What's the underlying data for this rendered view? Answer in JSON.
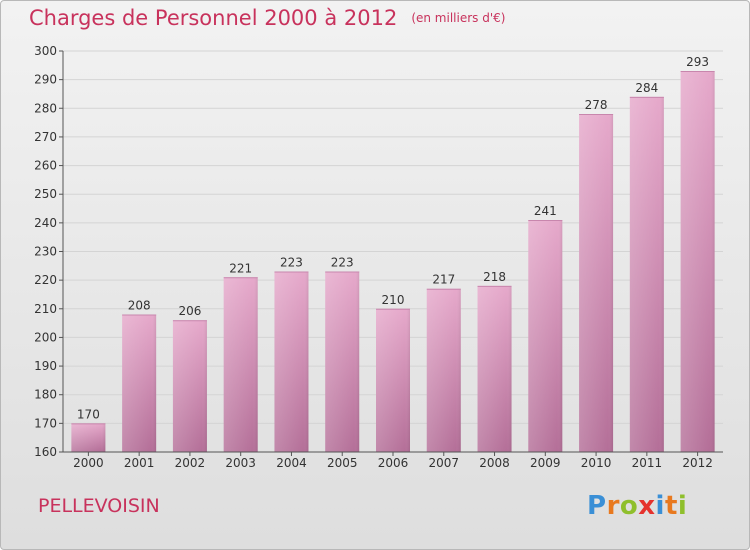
{
  "title": "Charges de Personnel 2000 à 2012",
  "subtitle": "(en milliers d'€)",
  "commune": "PELLEVOISIN",
  "logo": {
    "text": "Proxiti",
    "letter_colors": [
      "#3a8fd6",
      "#e8791f",
      "#8fbf2c",
      "#e5322d",
      "#3a8fd6",
      "#e8791f",
      "#8fbf2c"
    ]
  },
  "colors": {
    "accent": "#c8325c",
    "bar_light": "#e6a9cb",
    "bar_dark": "#b46f98"
  },
  "chart_data": {
    "type": "bar",
    "title": "Charges de Personnel 2000 à 2012",
    "subtitle": "(en milliers d'€)",
    "xlabel": "",
    "ylabel": "",
    "categories": [
      "2000",
      "2001",
      "2002",
      "2003",
      "2004",
      "2005",
      "2006",
      "2007",
      "2008",
      "2009",
      "2010",
      "2011",
      "2012"
    ],
    "values": [
      170,
      208,
      206,
      221,
      223,
      223,
      210,
      217,
      218,
      241,
      278,
      284,
      293
    ],
    "ylim": [
      160,
      300
    ],
    "yticks": [
      160,
      170,
      180,
      190,
      200,
      210,
      220,
      230,
      240,
      250,
      260,
      270,
      280,
      290,
      300
    ],
    "grid": true,
    "data_labels": true
  }
}
